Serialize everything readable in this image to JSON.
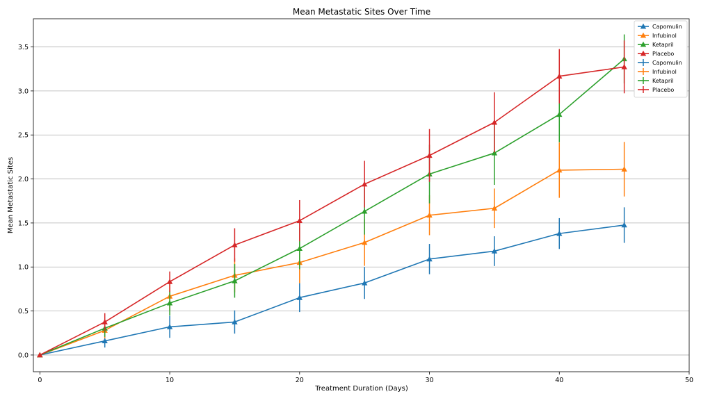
{
  "chart_data": {
    "type": "line",
    "title": "Mean Metastatic Sites Over Time",
    "xlabel": "Treatment Duration (Days)",
    "ylabel": "Mean Metastatic Sites",
    "xlim": [
      -0.5,
      50
    ],
    "ylim": [
      -0.19,
      3.82
    ],
    "xticks": [
      0,
      10,
      20,
      30,
      40,
      50
    ],
    "yticks": [
      0.0,
      0.5,
      1.0,
      1.5,
      2.0,
      2.5,
      3.0,
      3.5
    ],
    "xtick_labels": [
      "0",
      "10",
      "20",
      "30",
      "40",
      "50"
    ],
    "ytick_labels": [
      "0.0",
      "0.5",
      "1.0",
      "1.5",
      "2.0",
      "2.5",
      "3.0",
      "3.5"
    ],
    "grid": "horizontal",
    "legend_position": "top-right",
    "x": [
      0,
      5,
      10,
      15,
      20,
      25,
      30,
      35,
      40,
      45
    ],
    "series": [
      {
        "name": "Capomulin",
        "color": "#1f77b4",
        "values": [
          0.0,
          0.16,
          0.32,
          0.375,
          0.652,
          0.818,
          1.09,
          1.18,
          1.38,
          1.476
        ],
        "errors": [
          0.0,
          0.075,
          0.125,
          0.132,
          0.164,
          0.181,
          0.172,
          0.169,
          0.175,
          0.202
        ]
      },
      {
        "name": "Infubinol",
        "color": "#ff7f0e",
        "values": [
          0.0,
          0.28,
          0.667,
          0.905,
          1.05,
          1.278,
          1.588,
          1.667,
          2.1,
          2.111
        ],
        "errors": [
          0.0,
          0.091,
          0.159,
          0.194,
          0.234,
          0.265,
          0.227,
          0.224,
          0.314,
          0.31
        ]
      },
      {
        "name": "Ketapril",
        "color": "#2ca02c",
        "values": [
          0.0,
          0.304,
          0.59,
          0.842,
          1.21,
          1.632,
          2.056,
          2.294,
          2.733,
          3.364
        ],
        "errors": [
          0.0,
          0.098,
          0.142,
          0.191,
          0.236,
          0.264,
          0.333,
          0.361,
          0.316,
          0.278
        ]
      },
      {
        "name": "Placebo",
        "color": "#d62728",
        "values": [
          0.0,
          0.375,
          0.833,
          1.25,
          1.526,
          1.941,
          2.267,
          2.643,
          3.167,
          3.273
        ],
        "errors": [
          0.0,
          0.1,
          0.116,
          0.19,
          0.234,
          0.265,
          0.3,
          0.342,
          0.309,
          0.3
        ]
      }
    ]
  }
}
